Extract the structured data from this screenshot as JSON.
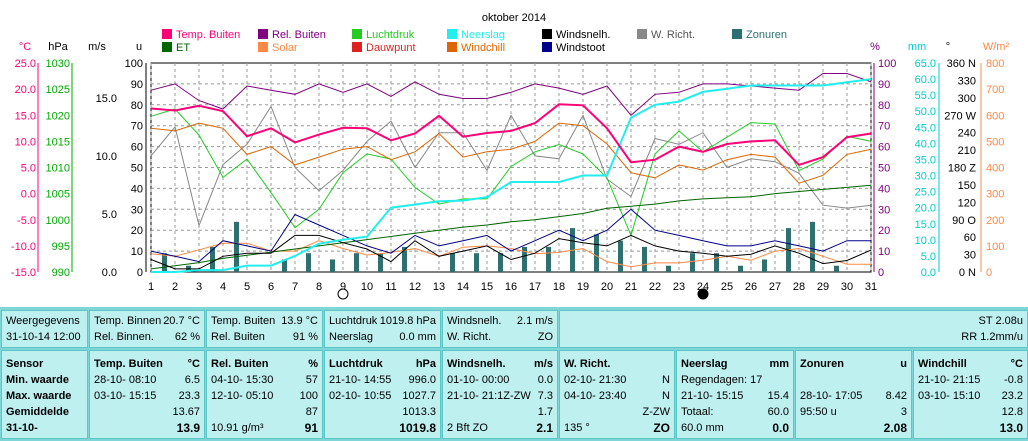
{
  "chart_data": {
    "type": "line",
    "title": "oktober 2014",
    "x": [
      1,
      2,
      3,
      4,
      5,
      6,
      7,
      8,
      9,
      10,
      11,
      12,
      13,
      14,
      15,
      16,
      17,
      18,
      19,
      20,
      21,
      22,
      23,
      24,
      25,
      26,
      27,
      28,
      29,
      30,
      31
    ],
    "legend": [
      {
        "name": "Temp. Buiten",
        "color": "#ff0077"
      },
      {
        "name": "Rel. Buiten",
        "color": "#800080"
      },
      {
        "name": "Luchtdruk",
        "color": "#22cc22"
      },
      {
        "name": "Neerslag",
        "color": "#22eeee"
      },
      {
        "name": "Windsnelh.",
        "color": "#000000"
      },
      {
        "name": "W. Richt.",
        "color": "#888888"
      },
      {
        "name": "Zonuren",
        "color": "#2e7070"
      },
      {
        "name": "ET",
        "color": "#006600"
      },
      {
        "name": "Solar",
        "color": "#ff8844"
      },
      {
        "name": "Dauwpunt",
        "color": "#dd2222"
      },
      {
        "name": "Windchill",
        "color": "#dd6600"
      },
      {
        "name": "Windstoot",
        "color": "#000088"
      }
    ],
    "axes": {
      "temp": {
        "label": "°C",
        "color": "#ff0077",
        "ticks": [
          "25.0",
          "20.0",
          "15.0",
          "10.0",
          "5.0",
          "0.0",
          "-5.0",
          "-10.0",
          "-15.0"
        ]
      },
      "press": {
        "label": "hPa",
        "color": "#00aa00",
        "ticks": [
          "1030",
          "1025",
          "1020",
          "1015",
          "1010",
          "1005",
          "1000",
          "995",
          "990"
        ]
      },
      "wind": {
        "label": "m/s",
        "ticks": [
          "15.0",
          "10.0",
          "5.0",
          "0.0"
        ]
      },
      "sun": {
        "label": "u",
        "ticks": [
          "100",
          "90",
          "80",
          "70",
          "60",
          "50",
          "40",
          "30",
          "20",
          "10",
          "0"
        ]
      },
      "hum": {
        "label": "%",
        "color": "#800080",
        "ticks": [
          "100",
          "90",
          "80",
          "70",
          "60",
          "50",
          "40",
          "30",
          "20",
          "10",
          "0"
        ]
      },
      "rain": {
        "label": "mm",
        "color": "#00cccc",
        "ticks": [
          "65.0",
          "60.0",
          "55.0",
          "50.0",
          "45.0",
          "40.0",
          "35.0",
          "30.0",
          "25.0",
          "20.0",
          "15.0",
          "10.0",
          "5.0",
          "0.0"
        ]
      },
      "dir": {
        "label": "°",
        "ticks": [
          "360 N",
          "330",
          "300",
          "270 W",
          "240",
          "210",
          "180 Z",
          "150",
          "120",
          "90 O",
          "60",
          "30",
          "0 N"
        ]
      },
      "solar": {
        "label": "W/m²",
        "color": "#ff8844",
        "ticks": [
          "800",
          "700",
          "600",
          "500",
          "400",
          "300",
          "200",
          "100",
          "0"
        ]
      }
    },
    "series": {
      "temp": [
        16.3,
        15.9,
        16.8,
        15.8,
        11.0,
        12.5,
        9.8,
        11.3,
        12.6,
        12.5,
        10.2,
        11.5,
        14.9,
        10.9,
        11.6,
        12.0,
        13.5,
        17.1,
        16.9,
        12.5,
        6.0,
        6.5,
        9.0,
        8.0,
        9.5,
        10.0,
        10.2,
        5.5,
        7.0,
        10.8,
        11.5
      ],
      "dew": [
        12.5,
        12.0,
        13.5,
        12.5,
        7.5,
        9.0,
        5.5,
        7.0,
        8.5,
        9.0,
        6.5,
        8.0,
        11.5,
        7.0,
        8.0,
        8.5,
        10.0,
        13.5,
        13.0,
        9.5,
        4.0,
        3.0,
        5.5,
        4.5,
        6.5,
        7.5,
        7.0,
        2.0,
        3.5,
        7.5,
        8.5
      ],
      "hum": [
        87,
        90,
        82,
        78,
        89,
        87,
        85,
        90,
        86,
        90,
        84,
        91,
        85,
        83,
        83,
        86,
        90,
        88,
        85,
        89,
        75,
        85,
        86,
        90,
        90,
        89,
        88,
        87,
        95,
        95,
        91
      ],
      "press": [
        1019.8,
        1021.2,
        1016.2,
        1008.1,
        1011.6,
        1005.2,
        998.5,
        1002.0,
        1009.0,
        1012.6,
        1011.6,
        1006.2,
        1003.0,
        1004.0,
        1004.0,
        1010.2,
        1013.0,
        1014.4,
        1012.6,
        1008.0,
        997.0,
        1012.6,
        1017.0,
        1013.0,
        1015.8,
        1018.6,
        1018.3,
        1009.4,
        1011.6,
        1016.0,
        1015.0
      ],
      "rain": [
        0.0,
        0.0,
        0.6,
        0.6,
        2.0,
        2.0,
        5.0,
        8.8,
        10.0,
        11.0,
        20.0,
        21.0,
        22.0,
        22.2,
        23.3,
        28.0,
        28.0,
        28.0,
        30.0,
        30.0,
        48.0,
        52.0,
        53.0,
        56.0,
        57.0,
        58.0,
        58.0,
        58.0,
        58.0,
        59.0,
        60.0
      ],
      "wind": [
        1.2,
        0.3,
        0.3,
        1.5,
        1.8,
        1.8,
        3.5,
        3.5,
        2.8,
        2.2,
        1.0,
        3.0,
        1.5,
        2.0,
        2.5,
        1.2,
        1.8,
        3.2,
        2.8,
        2.5,
        3.5,
        2.5,
        2.0,
        1.8,
        1.5,
        1.7,
        2.5,
        1.8,
        0.8,
        1.1,
        2.1
      ],
      "gust": [
        2.0,
        1.5,
        1.0,
        3.0,
        2.5,
        2.0,
        5.5,
        4.5,
        3.5,
        2.5,
        1.8,
        3.5,
        2.5,
        3.0,
        3.5,
        2.0,
        3.0,
        4.0,
        3.0,
        4.0,
        6.0,
        4.0,
        3.5,
        3.0,
        2.5,
        2.5,
        3.0,
        2.5,
        2.0,
        3.0,
        3.0
      ],
      "dir": [
        200,
        250,
        80,
        185,
        220,
        285,
        180,
        140,
        175,
        225,
        260,
        180,
        240,
        240,
        175,
        270,
        200,
        195,
        270,
        160,
        130,
        230,
        220,
        240,
        180,
        195,
        190,
        170,
        115,
        110,
        115
      ],
      "solar": [
        70,
        60,
        85,
        110,
        110,
        80,
        80,
        120,
        90,
        65,
        75,
        90,
        60,
        95,
        100,
        90,
        70,
        75,
        90,
        40,
        20,
        35,
        35,
        45,
        60,
        45,
        80,
        90,
        60,
        30,
        30
      ],
      "et": [
        0.3,
        0.6,
        0.9,
        1.3,
        1.6,
        1.9,
        2.2,
        2.5,
        2.8,
        3.1,
        3.4,
        3.7,
        4.0,
        4.3,
        4.5,
        4.8,
        5.0,
        5.3,
        5.6,
        6.1,
        6.3,
        6.5,
        6.8,
        7.0,
        7.1,
        7.2,
        7.5,
        7.7,
        7.9,
        8.1,
        8.3
      ],
      "sun": [
        3,
        1,
        4,
        8,
        0,
        2,
        3,
        2,
        3,
        3,
        4,
        0,
        3,
        3,
        3,
        4,
        4,
        7,
        6,
        5,
        4,
        1,
        3,
        3,
        1,
        2,
        7,
        8,
        1,
        0,
        0
      ]
    },
    "moon_days": [
      9,
      24
    ]
  },
  "table": {
    "top": {
      "weergegevens": "Weergegevens",
      "datetime": "31-10-14 12:00",
      "tbinnen_label": "Temp. Binnen",
      "tbinnen_val": "20.7 °C",
      "rbinnen_label": "Rel. Binnen.",
      "rbinnen_val": "62 %",
      "tbuiten_label": "Temp. Buiten",
      "tbuiten_val": "13.9 °C",
      "rbuiten_label": "Rel. Buiten",
      "rbuiten_val": "91 %",
      "ldruk_label": "Luchtdruk",
      "ldruk_val": "1019.8 hPa",
      "neer_label": "Neerslag",
      "neer_val": "0.0 mm",
      "wsn_label": "Windsnelh.",
      "wsn_val": "2.1 m/s",
      "wr_label": "W. Richt.",
      "wr_val": "ZO",
      "st": "ST 2.08u",
      "rr": "RR 1.2mm/u"
    },
    "labels": {
      "sensor": "Sensor",
      "min": "Min. waarde",
      "max": "Max. waarde",
      "avg": "Gemiddelde",
      "date": "31-10-"
    },
    "cols": [
      {
        "h": "Temp. Buiten",
        "u": "°C",
        "min": [
          "28-10- 08:10",
          "6.5"
        ],
        "max": [
          "03-10- 15:15",
          "23.3"
        ],
        "avg": [
          "",
          "13.67"
        ],
        "cur": [
          "",
          "13.9"
        ]
      },
      {
        "h": "Rel. Buiten",
        "u": "%",
        "min": [
          "04-10- 15:30",
          "57"
        ],
        "max": [
          "12-10- 05:10",
          "100"
        ],
        "avg": [
          "",
          "87"
        ],
        "cur": [
          "10.91 g/m³",
          "91"
        ]
      },
      {
        "h": "Luchtdruk",
        "u": "hPa",
        "min": [
          "21-10- 14:55",
          "996.0"
        ],
        "max": [
          "02-10- 10:55",
          "1027.7"
        ],
        "avg": [
          "",
          "1013.3"
        ],
        "cur": [
          "",
          "1019.8"
        ]
      },
      {
        "h": "Windsnelh.",
        "u": "m/s",
        "min": [
          "01-10- 00:00",
          "0.0"
        ],
        "max": [
          "21-10- 21:1Z-ZW",
          "7.3"
        ],
        "avg": [
          "",
          "1.7"
        ],
        "cur": [
          "2 Bft ZO",
          "2.1"
        ]
      },
      {
        "h": "W. Richt.",
        "u": "",
        "min": [
          "02-10- 21:30",
          "N"
        ],
        "max": [
          "04-10- 23:40",
          "N"
        ],
        "avg": [
          "",
          "Z-ZW"
        ],
        "cur": [
          "135 °",
          "ZO"
        ]
      },
      {
        "h": "Neerslag",
        "u": "mm",
        "min": [
          "Regendagen: 17",
          ""
        ],
        "max": [
          "21-10- 15:15",
          "15.4"
        ],
        "avg": [
          "Totaal:",
          "60.0"
        ],
        "cur": [
          "60.0 mm",
          "0.0"
        ]
      },
      {
        "h": "Zonuren",
        "u": "u",
        "min": [
          "",
          ""
        ],
        "max": [
          "28-10- 17:05",
          "8.42"
        ],
        "avg": [
          "95:50 u",
          "3"
        ],
        "cur": [
          "",
          "2.08"
        ]
      },
      {
        "h": "Windchill",
        "u": "°C",
        "min": [
          "21-10- 21:15",
          "-0.8"
        ],
        "max": [
          "03-10- 15:10",
          "23.2"
        ],
        "avg": [
          "",
          "12.8"
        ],
        "cur": [
          "",
          "13.0"
        ]
      }
    ]
  }
}
